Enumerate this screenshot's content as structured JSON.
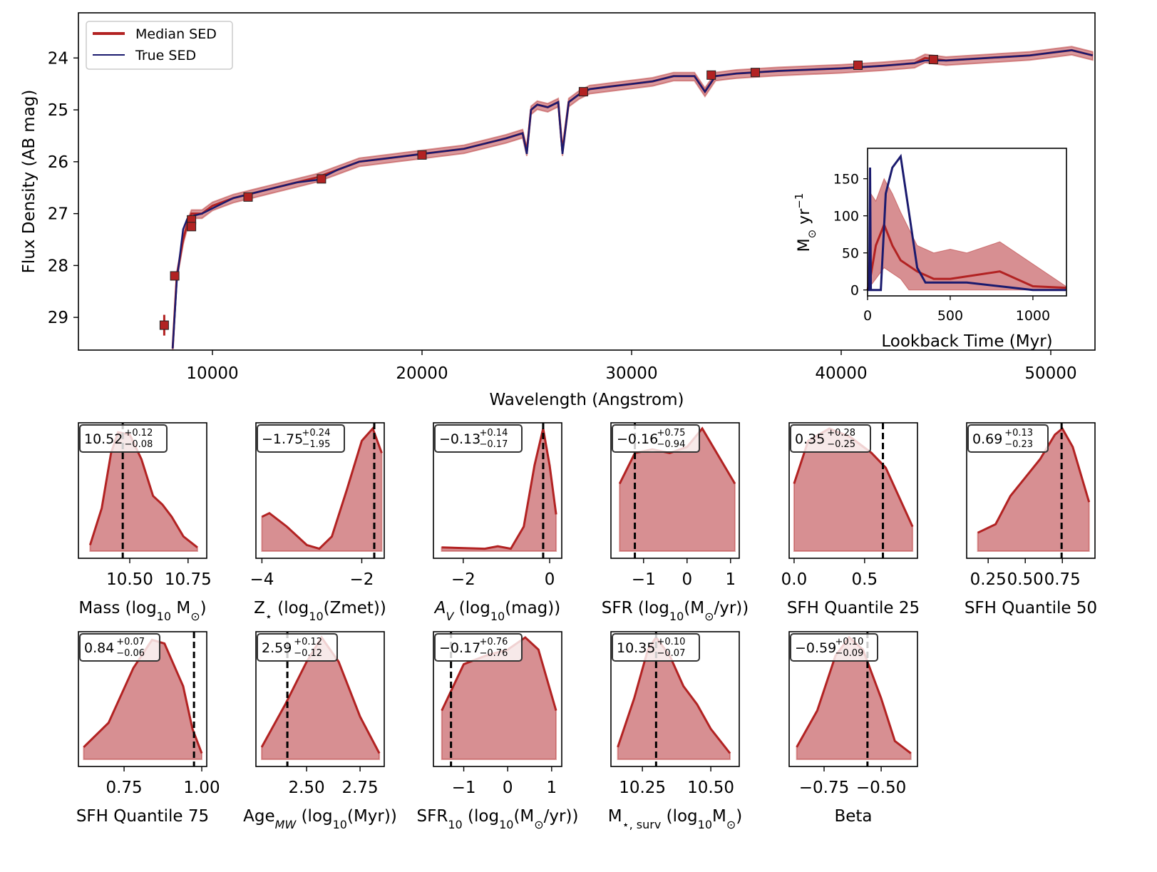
{
  "colors": {
    "median": "#b22222",
    "fill": "#d78f92",
    "true": "#1a1a6e",
    "truth_line": "#000000"
  },
  "chart_data": [
    {
      "type": "line",
      "xlabel": "Wavelength (Angstrom)",
      "ylabel": "Flux Density (AB mag)",
      "xlim": [
        3605,
        52109
      ],
      "ylim": [
        29.63,
        23.13
      ],
      "y_inverted": true,
      "xticks": [
        10000,
        20000,
        30000,
        40000,
        50000
      ],
      "yticks": [
        24,
        25,
        26,
        27,
        28,
        29
      ],
      "legend": {
        "placement": "top-left",
        "entries": [
          "Median SED",
          "True SED"
        ]
      },
      "series": [
        {
          "name": "Median SED",
          "x": [
            8100,
            8300,
            8600,
            8800,
            9000,
            9500,
            10000,
            11000,
            12000,
            13000,
            14000,
            15000,
            16000,
            17000,
            18000,
            19000,
            20000,
            22000,
            24000,
            24800,
            25000,
            25200,
            25500,
            26000,
            26500,
            26700,
            27000,
            27500,
            28000,
            29000,
            30000,
            31000,
            32000,
            33000,
            33500,
            34000,
            35000,
            37000,
            40000,
            42000,
            43500,
            44000,
            45000,
            47000,
            49000,
            50000,
            51000,
            52000
          ],
          "y": [
            29.6,
            28.2,
            27.5,
            27.2,
            27.0,
            27.0,
            26.85,
            26.7,
            26.6,
            26.5,
            26.4,
            26.3,
            26.15,
            26.0,
            25.95,
            25.9,
            25.85,
            25.75,
            25.55,
            25.45,
            25.8,
            25.0,
            24.9,
            24.95,
            24.85,
            25.8,
            24.85,
            24.7,
            24.6,
            24.55,
            24.5,
            24.45,
            24.35,
            24.35,
            24.65,
            24.35,
            24.3,
            24.25,
            24.2,
            24.15,
            24.1,
            24.0,
            24.05,
            24.0,
            23.95,
            23.9,
            23.85,
            23.95
          ]
        },
        {
          "name": "True SED",
          "x": [
            8100,
            8300,
            8600,
            8800,
            9000,
            9500,
            10000,
            11000,
            12000,
            13000,
            14000,
            15000,
            16000,
            17000,
            18000,
            19000,
            20000,
            22000,
            24000,
            24800,
            25000,
            25200,
            25500,
            26000,
            26500,
            26700,
            27000,
            27500,
            28000,
            29000,
            30000,
            31000,
            32000,
            33000,
            33500,
            34000,
            35000,
            37000,
            40000,
            42000,
            43500,
            44000,
            45000,
            47000,
            49000,
            50000,
            51000,
            52000
          ],
          "y": [
            29.6,
            28.3,
            27.3,
            27.1,
            27.05,
            27.0,
            26.9,
            26.7,
            26.6,
            26.5,
            26.4,
            26.35,
            26.15,
            26.0,
            25.95,
            25.9,
            25.85,
            25.75,
            25.55,
            25.45,
            25.85,
            25.0,
            24.9,
            24.95,
            24.85,
            25.85,
            24.85,
            24.7,
            24.6,
            24.55,
            24.5,
            24.45,
            24.35,
            24.35,
            24.65,
            24.35,
            24.3,
            24.25,
            24.2,
            24.15,
            24.1,
            24.05,
            24.05,
            24.0,
            23.95,
            23.9,
            23.85,
            23.95
          ]
        }
      ],
      "photometry": {
        "x": [
          7700,
          8200,
          9000,
          9000,
          11700,
          15200,
          20000,
          27700,
          33800,
          35900,
          40800,
          44400
        ],
        "y": [
          29.15,
          28.2,
          27.12,
          27.25,
          26.68,
          26.33,
          25.87,
          24.65,
          24.33,
          24.28,
          24.14,
          24.03
        ],
        "yerr": [
          0.2,
          0.05,
          0.05,
          0.05,
          0.03,
          0.03,
          0.02,
          0.03,
          0.02,
          0.02,
          0.02,
          0.02
        ]
      }
    },
    {
      "type": "area",
      "inset": true,
      "xlabel": "Lookback Time (Myr)",
      "ylabel": {
        "base": "M",
        "sub": "⊙",
        "mid": " yr",
        "sup": "−1"
      },
      "xlim": [
        0,
        1203
      ],
      "ylim": [
        -8,
        191
      ],
      "xticks": [
        0,
        500,
        1000
      ],
      "yticks": [
        0,
        50,
        100,
        150
      ],
      "median": {
        "x": [
          0,
          20,
          50,
          100,
          150,
          200,
          300,
          400,
          500,
          800,
          1000,
          1200
        ],
        "y": [
          0,
          20,
          60,
          88,
          60,
          40,
          25,
          15,
          15,
          25,
          5,
          3
        ]
      },
      "upper": {
        "x": [
          0,
          20,
          50,
          100,
          150,
          200,
          300,
          400,
          500,
          600,
          800,
          1200
        ],
        "y": [
          0,
          130,
          120,
          150,
          130,
          105,
          60,
          50,
          55,
          50,
          65,
          5
        ]
      },
      "lower": {
        "x": [
          0,
          100,
          200,
          250,
          1200
        ],
        "y": [
          0,
          30,
          15,
          0,
          0
        ]
      },
      "true": {
        "x": [
          0,
          10,
          15,
          20,
          80,
          110,
          150,
          200,
          300,
          350,
          600,
          800,
          1000,
          1200
        ],
        "y": [
          0,
          0,
          165,
          0,
          0,
          130,
          165,
          180,
          30,
          10,
          10,
          5,
          0,
          0
        ]
      }
    },
    {
      "type": "area",
      "panel": "Mass",
      "xlabel": [
        {
          "t": "Mass (log"
        },
        {
          "sub": "10"
        },
        {
          "t": " M"
        },
        {
          "sub": "⊙"
        },
        {
          "t": ")"
        }
      ],
      "xlim": [
        10.28,
        10.83
      ],
      "xticks": [
        10.5,
        10.75
      ],
      "tick_labels": [
        "10.50",
        "10.75"
      ],
      "truth": 10.47,
      "median": "10.52",
      "plus": "+0.12",
      "minus": "−0.08",
      "kde": {
        "x": [
          10.33,
          10.38,
          10.42,
          10.45,
          10.5,
          10.55,
          10.6,
          10.64,
          10.68,
          10.73,
          10.79
        ],
        "y": [
          0.05,
          0.35,
          0.8,
          0.97,
          0.95,
          0.75,
          0.45,
          0.38,
          0.28,
          0.12,
          0.03
        ]
      }
    },
    {
      "type": "area",
      "panel": "Zstar",
      "xlabel": [
        {
          "t": "Z"
        },
        {
          "sub": "⋆"
        },
        {
          "t": " (log"
        },
        {
          "sub": "10"
        },
        {
          "t": "(Zmet))"
        }
      ],
      "xlim": [
        -4.12,
        -1.55
      ],
      "xticks": [
        -4,
        -2
      ],
      "tick_labels": [
        "−4",
        "−2"
      ],
      "truth": -1.75,
      "median": "−1.75",
      "plus": "+0.24",
      "minus": "−1.95",
      "kde": {
        "x": [
          -4,
          -3.85,
          -3.5,
          -3.1,
          -2.85,
          -2.6,
          -2.3,
          -2.0,
          -1.78,
          -1.6
        ],
        "y": [
          0.28,
          0.31,
          0.2,
          0.05,
          0.02,
          0.12,
          0.5,
          0.9,
          1.0,
          0.8
        ]
      }
    },
    {
      "type": "area",
      "panel": "Av",
      "xlabel": [
        {
          "i": "A"
        },
        {
          "isub": "V"
        },
        {
          "t": " (log"
        },
        {
          "sub": "10"
        },
        {
          "t": "(mag))"
        }
      ],
      "xlim": [
        -2.69,
        0.28
      ],
      "xticks": [
        -2,
        0
      ],
      "tick_labels": [
        "−2",
        "0"
      ],
      "truth": -0.15,
      "median": "−0.13",
      "plus": "+0.14",
      "minus": "−0.17",
      "kde": {
        "x": [
          -2.5,
          -1.5,
          -1.2,
          -0.9,
          -0.6,
          -0.35,
          -0.15,
          0,
          0.15
        ],
        "y": [
          0.03,
          0.02,
          0.04,
          0.02,
          0.2,
          0.7,
          1.0,
          0.7,
          0.3
        ]
      }
    },
    {
      "type": "area",
      "panel": "SFR",
      "xlabel": [
        {
          "t": "SFR (log"
        },
        {
          "sub": "10"
        },
        {
          "t": "(M"
        },
        {
          "sub": "⊙"
        },
        {
          "t": "/yr))"
        }
      ],
      "xlim": [
        -1.75,
        1.2
      ],
      "xticks": [
        -1,
        0,
        1
      ],
      "tick_labels": [
        "−1",
        "0",
        "1"
      ],
      "truth": -1.2,
      "median": "−0.16",
      "plus": "+0.75",
      "minus": "−0.94",
      "kde": {
        "x": [
          -1.55,
          -1.2,
          -0.8,
          -0.4,
          0,
          0.35,
          0.6,
          1.1
        ],
        "y": [
          0.55,
          0.8,
          0.83,
          0.8,
          0.85,
          1.0,
          0.85,
          0.55
        ]
      }
    },
    {
      "type": "area",
      "panel": "SFH25",
      "xlabel": [
        {
          "t": "SFH Quantile 25"
        }
      ],
      "xlim": [
        -0.035,
        0.875
      ],
      "xticks": [
        0,
        0.5
      ],
      "tick_labels": [
        "0.0",
        "0.5"
      ],
      "truth": 0.63,
      "median": "0.35",
      "plus": "+0.28",
      "minus": "−0.25",
      "kde": {
        "x": [
          0,
          0.1,
          0.25,
          0.4,
          0.55,
          0.65,
          0.84
        ],
        "y": [
          0.55,
          0.9,
          1.0,
          0.93,
          0.8,
          0.68,
          0.2
        ]
      }
    },
    {
      "type": "area",
      "panel": "SFH50",
      "xlabel": [
        {
          "t": "SFH Quantile 50"
        }
      ],
      "xlim": [
        0.105,
        0.97
      ],
      "xticks": [
        0.25,
        0.5,
        0.75
      ],
      "tick_labels": [
        "0.25",
        "0.50",
        "0.75"
      ],
      "truth": 0.745,
      "median": "0.69",
      "plus": "+0.13",
      "minus": "−0.23",
      "kde": {
        "x": [
          0.18,
          0.3,
          0.4,
          0.5,
          0.6,
          0.7,
          0.75,
          0.82,
          0.93
        ],
        "y": [
          0.15,
          0.22,
          0.45,
          0.6,
          0.75,
          0.95,
          1.0,
          0.85,
          0.4
        ]
      }
    },
    {
      "type": "area",
      "panel": "SFH75",
      "xlabel": [
        {
          "t": "SFH Quantile 75"
        }
      ],
      "xlim": [
        0.603,
        1.016
      ],
      "xticks": [
        0.75,
        1.0
      ],
      "tick_labels": [
        "0.75",
        "1.00"
      ],
      "truth": 0.975,
      "median": "0.84",
      "plus": "+0.07",
      "minus": "−0.06",
      "kde": {
        "x": [
          0.62,
          0.7,
          0.78,
          0.84,
          0.88,
          0.94,
          0.97,
          1.0
        ],
        "y": [
          0.1,
          0.3,
          0.75,
          0.98,
          0.95,
          0.6,
          0.25,
          0.05
        ]
      }
    },
    {
      "type": "area",
      "panel": "AgeMW",
      "xlabel": [
        {
          "t": "Age"
        },
        {
          "isub": "MW"
        },
        {
          "t": " (log"
        },
        {
          "sub": "10"
        },
        {
          "t": "(Myr))"
        }
      ],
      "xlim": [
        2.263,
        2.863
      ],
      "xticks": [
        2.5,
        2.75
      ],
      "tick_labels": [
        "2.50",
        "2.75"
      ],
      "truth": 2.41,
      "median": "2.59",
      "plus": "+0.12",
      "minus": "−0.12",
      "kde": {
        "x": [
          2.29,
          2.4,
          2.5,
          2.57,
          2.65,
          2.75,
          2.84
        ],
        "y": [
          0.1,
          0.45,
          0.8,
          1.0,
          0.8,
          0.35,
          0.05
        ]
      }
    },
    {
      "type": "area",
      "panel": "SFR10",
      "xlabel": [
        {
          "t": "SFR"
        },
        {
          "sub": "10"
        },
        {
          "t": " (log"
        },
        {
          "sub": "10"
        },
        {
          "t": "(M"
        },
        {
          "sub": "⊙"
        },
        {
          "t": "/yr))"
        }
      ],
      "xlim": [
        -1.69,
        1.23
      ],
      "xticks": [
        -1,
        0,
        1
      ],
      "tick_labels": [
        "−1",
        "0",
        "1"
      ],
      "truth": -1.29,
      "median": "−0.17",
      "plus": "+0.76",
      "minus": "−0.76",
      "kde": {
        "x": [
          -1.5,
          -1.0,
          -0.5,
          0,
          0.4,
          0.7,
          1.1
        ],
        "y": [
          0.4,
          0.78,
          0.85,
          0.9,
          1.0,
          0.9,
          0.4
        ]
      }
    },
    {
      "type": "area",
      "panel": "Msurv",
      "xlabel": [
        {
          "t": "M"
        },
        {
          "sub": "⋆, surv"
        },
        {
          "t": " (log"
        },
        {
          "sub": "10"
        },
        {
          "t": "M"
        },
        {
          "sub": "⊙"
        },
        {
          "t": ")"
        }
      ],
      "xlim": [
        10.135,
        10.604
      ],
      "xticks": [
        10.25,
        10.5
      ],
      "tick_labels": [
        "10.25",
        "10.50"
      ],
      "truth": 10.3,
      "median": "10.35",
      "plus": "+0.10",
      "minus": "−0.07",
      "kde": {
        "x": [
          10.16,
          10.22,
          10.27,
          10.3,
          10.35,
          10.4,
          10.45,
          10.5,
          10.57
        ],
        "y": [
          0.1,
          0.5,
          0.9,
          1.0,
          0.85,
          0.6,
          0.45,
          0.25,
          0.05
        ]
      }
    },
    {
      "type": "area",
      "panel": "Beta",
      "xlabel": [
        {
          "t": "Beta"
        }
      ],
      "xlim": [
        -0.903,
        -0.341
      ],
      "xticks": [
        -0.75,
        -0.5
      ],
      "tick_labels": [
        "−0.75",
        "−0.50"
      ],
      "truth": -0.56,
      "median": "−0.59",
      "plus": "+0.10",
      "minus": "−0.09",
      "kde": {
        "x": [
          -0.87,
          -0.78,
          -0.7,
          -0.64,
          -0.58,
          -0.5,
          -0.44,
          -0.37
        ],
        "y": [
          0.1,
          0.4,
          0.85,
          1.0,
          0.9,
          0.5,
          0.15,
          0.05
        ]
      }
    }
  ]
}
